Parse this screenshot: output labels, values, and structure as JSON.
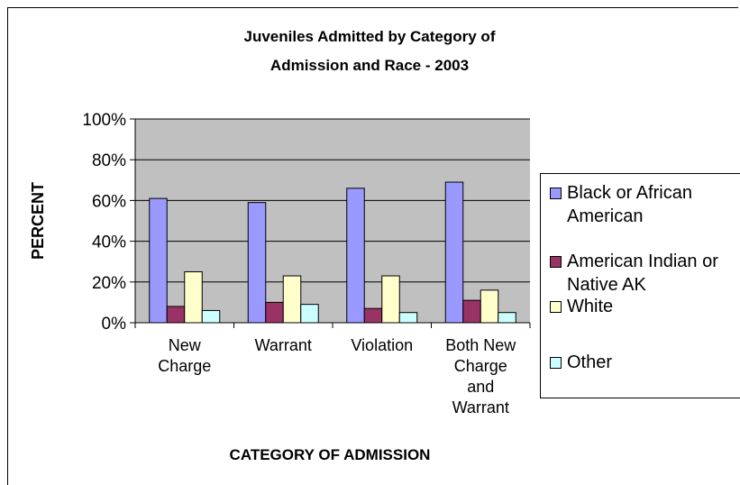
{
  "chart_data": {
    "type": "bar",
    "title_lines": [
      "Juveniles Admitted by Category of",
      "Admission and Race - 2003"
    ],
    "xlabel": "CATEGORY OF ADMISSION",
    "ylabel": "PERCENT",
    "ylim": [
      0,
      100
    ],
    "yticks": [
      "0%",
      "20%",
      "40%",
      "60%",
      "80%",
      "100%"
    ],
    "grid": true,
    "legend_position": "right",
    "categories": [
      [
        "New",
        "Charge"
      ],
      [
        "Warrant"
      ],
      [
        "Violation"
      ],
      [
        "Both New",
        "Charge",
        "and",
        "Warrant"
      ]
    ],
    "series": [
      {
        "name": "Black or African\nAmerican",
        "color": "#9999ff",
        "values": [
          61,
          59,
          66,
          69
        ]
      },
      {
        "name": "American Indian or\nNative AK",
        "color": "#993366",
        "values": [
          8,
          10,
          7,
          11
        ]
      },
      {
        "name": "White",
        "color": "#ffffcc",
        "values": [
          25,
          23,
          23,
          16
        ]
      },
      {
        "name": "Other",
        "color": "#ccffff",
        "values": [
          6,
          9,
          5,
          5
        ]
      }
    ]
  }
}
